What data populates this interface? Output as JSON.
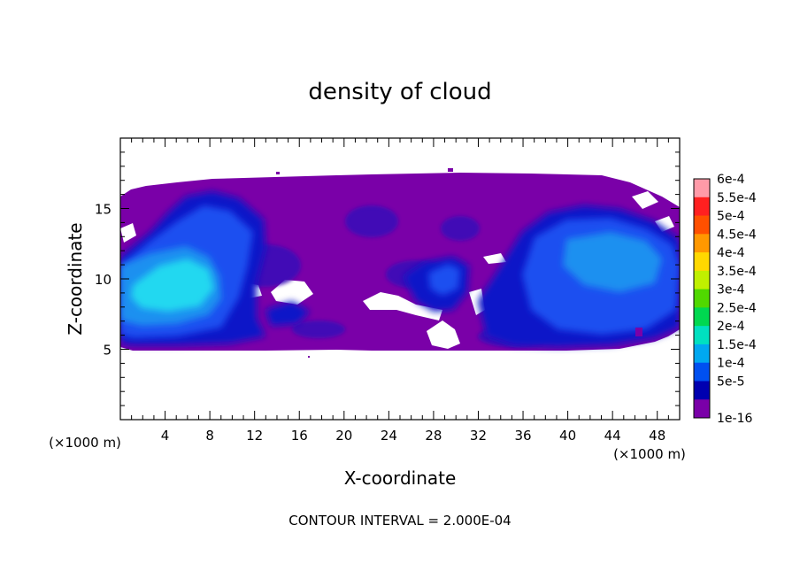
{
  "chart_data": {
    "type": "heatmap",
    "title": "density of cloud",
    "xlabel": "X-coordinate",
    "ylabel": "Z-coordinate",
    "x_unit_left": "(×1000 m)",
    "x_unit_right": "(×1000 m)",
    "xlim": [
      0,
      50
    ],
    "ylim": [
      0,
      20
    ],
    "x_ticks": [
      4,
      8,
      12,
      16,
      20,
      24,
      28,
      32,
      36,
      40,
      44,
      48
    ],
    "y_ticks": [
      5,
      10,
      15
    ],
    "footer": "CONTOUR INTERVAL = 2.000E-04",
    "colorbar": {
      "labels": [
        "6e-4",
        "5.5e-4",
        "5e-4",
        "4.5e-4",
        "4e-4",
        "3.5e-4",
        "3e-4",
        "2.5e-4",
        "2e-4",
        "1.5e-4",
        "1e-4",
        "5e-5",
        "1e-16"
      ],
      "colors": [
        "#ff9aa8",
        "#ff2020",
        "#ff5000",
        "#ff9800",
        "#ffd800",
        "#c0f000",
        "#50d800",
        "#00d850",
        "#00e0c0",
        "#00a8f0",
        "#0050f0",
        "#0000b0",
        "#7a00a8"
      ]
    },
    "regions": [
      {
        "level": "1e-16",
        "x": [
          2,
          48
        ],
        "z": [
          5,
          16.7
        ],
        "note": "cloud layer extent"
      },
      {
        "level": "1e-4",
        "x": [
          0,
          10
        ],
        "z": [
          6,
          14
        ],
        "note": "left dense core"
      },
      {
        "level": "2e-4",
        "x": [
          0,
          8.5
        ],
        "z": [
          8,
          12
        ],
        "note": "peak near x=3-8"
      },
      {
        "level": "1e-4",
        "x": [
          36,
          50
        ],
        "z": [
          6,
          14
        ],
        "note": "right dense core"
      },
      {
        "level": "1e-4",
        "x": [
          25,
          32
        ],
        "z": [
          7,
          11
        ],
        "note": "middle patches"
      }
    ]
  }
}
